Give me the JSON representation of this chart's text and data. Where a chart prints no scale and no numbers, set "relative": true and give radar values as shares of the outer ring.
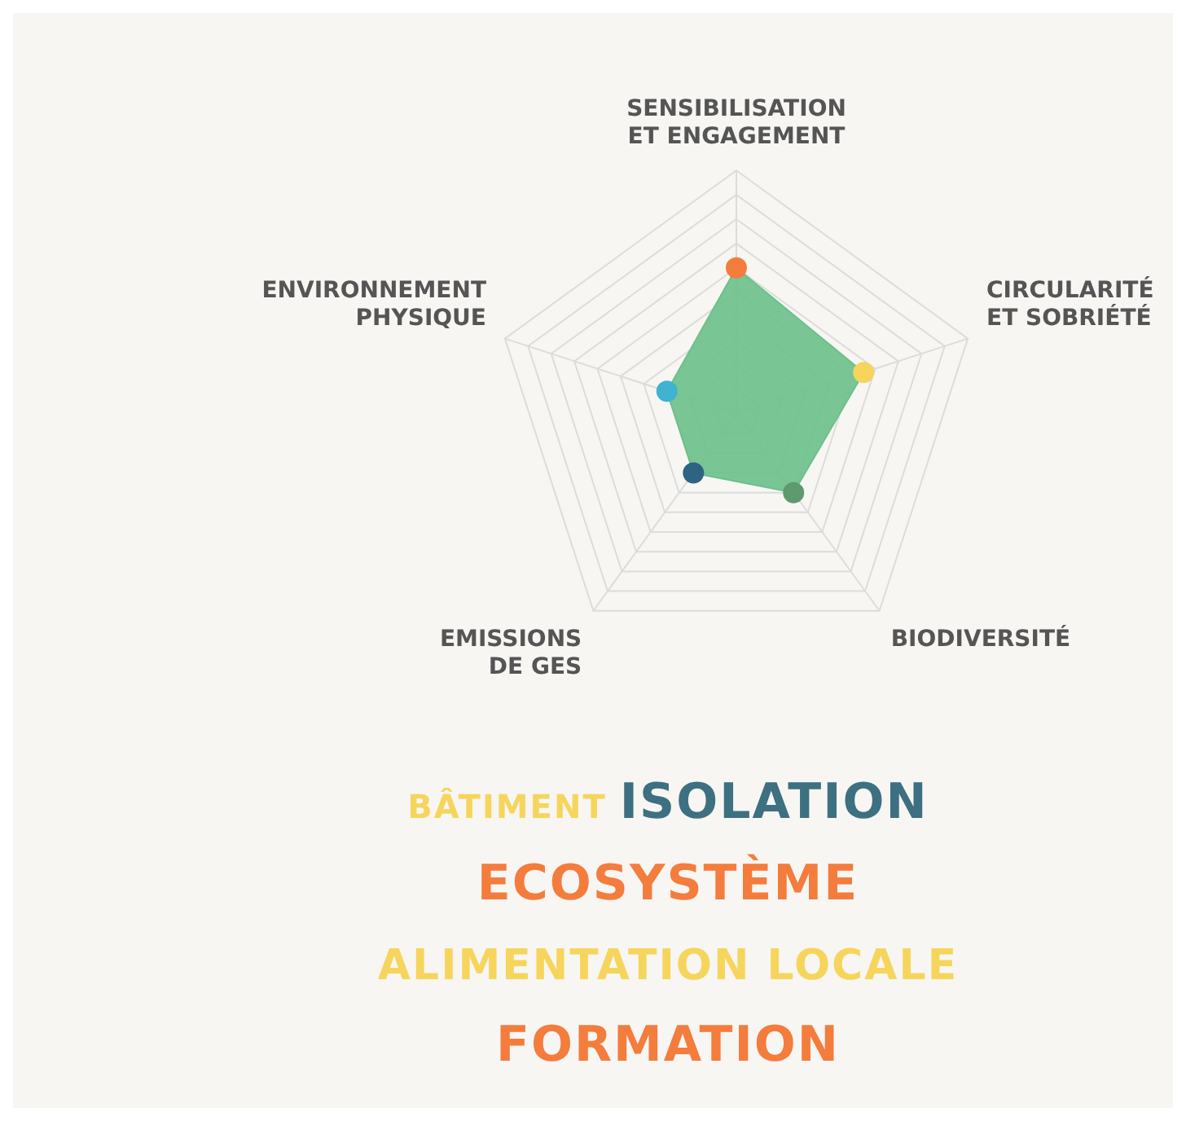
{
  "chart_data": {
    "type": "radar",
    "relative": true,
    "categories": [
      "SENSIBILISATION ET ENGAGEMENT",
      "CIRCULARITÉ ET SOBRIÉTÉ",
      "BIODIVERSITÉ",
      "EMISSIONS DE GES",
      "ENVIRONNEMENT PHYSIQUE"
    ],
    "series": [
      {
        "color": "#6cc08a",
        "colors": [
          "#f47c3c",
          "#f6d55c",
          "#5e9a6e",
          "#2e6483",
          "#3fb3d0"
        ],
        "values": [
          0.6,
          0.55,
          0.4,
          0.3,
          0.3
        ]
      }
    ],
    "marker": "circle",
    "grid": true,
    "legend": false,
    "annotations": [
      "BÂTIMENT",
      "ISOLATION",
      "ECOSYSTÈME",
      "ALIMENTATION LOCALE",
      "FORMATION"
    ]
  }
}
